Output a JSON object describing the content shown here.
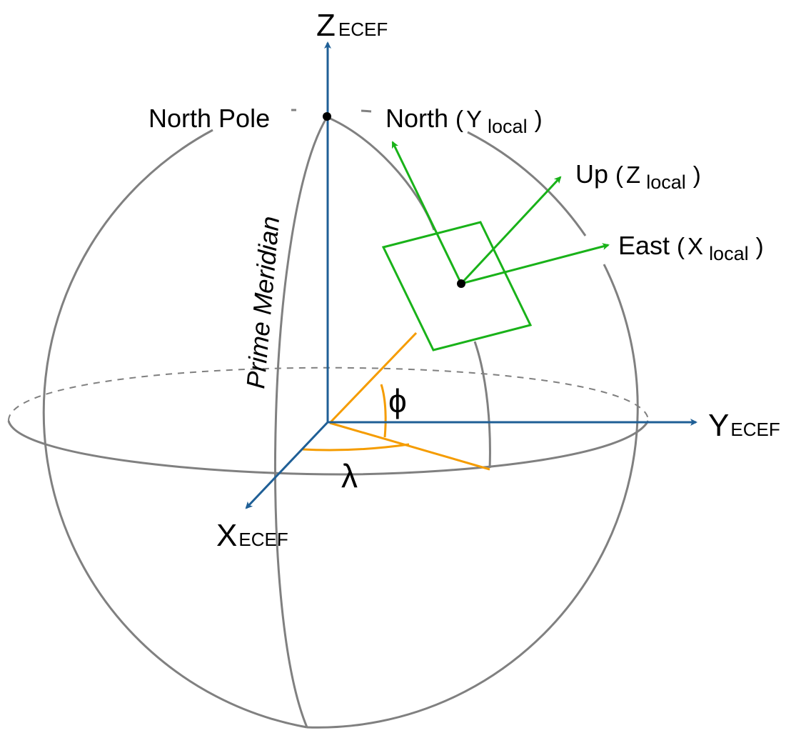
{
  "colors": {
    "sphere": "#808080",
    "ecef_axis": "#1f5f96",
    "local_frame": "#19b219",
    "angle": "#f59c00",
    "point": "#000000"
  },
  "labels": {
    "z_ecef": {
      "main": "Z",
      "sub": "ECEF"
    },
    "y_ecef": {
      "main": "Y",
      "sub": "ECEF"
    },
    "x_ecef": {
      "main": "X",
      "sub": "ECEF"
    },
    "north_pole": "North Pole",
    "prime_meridian": "Prime Meridian",
    "north": {
      "name": "North",
      "open": "(",
      "axis": "Y",
      "sub": "local",
      "close": ")"
    },
    "up": {
      "name": "Up",
      "open": "(",
      "axis": "Z",
      "sub": "local",
      "close": ")"
    },
    "east": {
      "name": "East",
      "open": "(",
      "axis": "X",
      "sub": "local",
      "close": ")"
    },
    "latitude": "ϕ",
    "longitude": "λ"
  }
}
